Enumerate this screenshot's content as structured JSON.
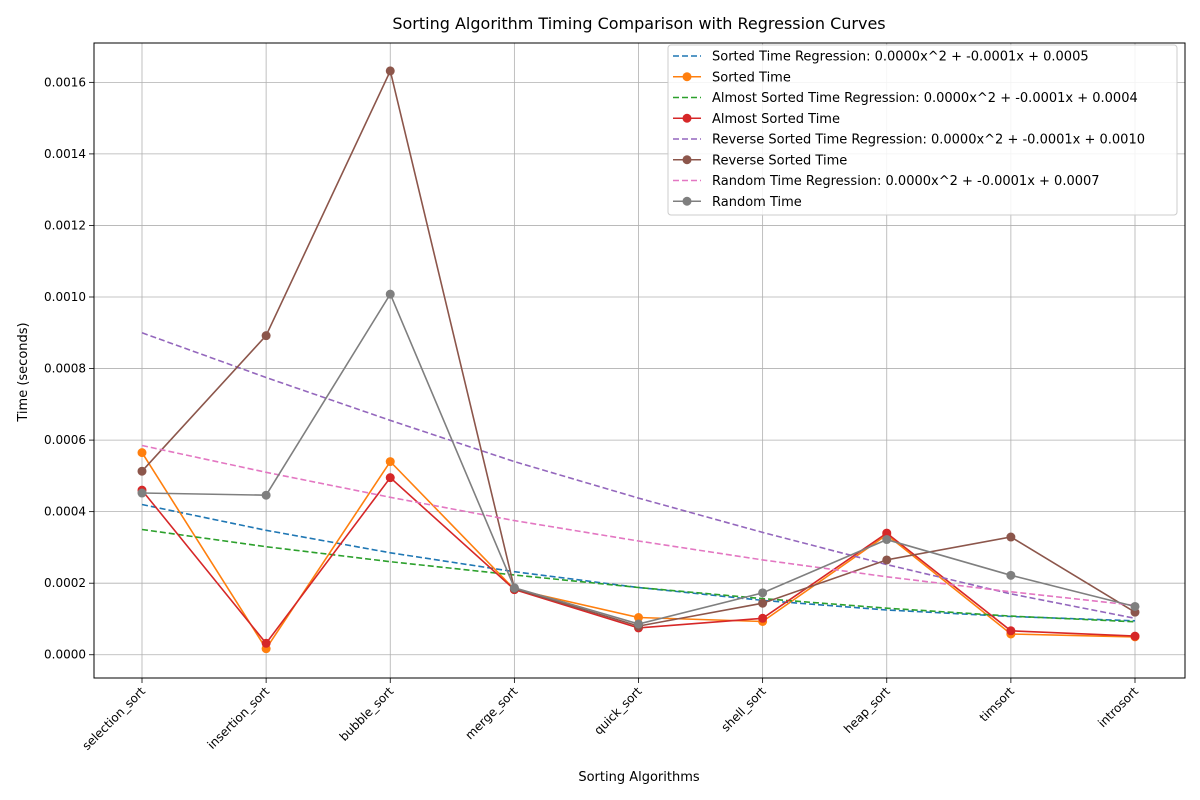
{
  "chart_data": {
    "type": "line",
    "title": "Sorting Algorithm Timing Comparison with Regression Curves",
    "xlabel": "Sorting Algorithms",
    "ylabel": "Time (seconds)",
    "categories": [
      "selection_sort",
      "insertion_sort",
      "bubble_sort",
      "merge_sort",
      "quick_sort",
      "shell_sort",
      "heap_sort",
      "timsort",
      "introsort"
    ],
    "ylim": [
      -6.5e-05,
      0.00171
    ],
    "yticks": [
      "0.0000",
      "0.0002",
      "0.0004",
      "0.0006",
      "0.0008",
      "0.0010",
      "0.0012",
      "0.0014",
      "0.0016"
    ],
    "ytick_values": [
      0,
      0.0002,
      0.0004,
      0.0006,
      0.0008,
      0.001,
      0.0012,
      0.0014,
      0.0016
    ],
    "grid": true,
    "legend_position": "top-right",
    "series": [
      {
        "name": "Sorted Time Regression: 0.0000x^2 + -0.0001x + 0.0005",
        "kind": "regression",
        "color": "#1f77b4",
        "values": [
          0.00042,
          0.000348,
          0.000285,
          0.000232,
          0.000188,
          0.000152,
          0.000125,
          0.000107,
          9.5e-05
        ]
      },
      {
        "name": "Sorted Time",
        "kind": "data",
        "color": "#ff7f0e",
        "values": [
          0.000565,
          1.7e-05,
          0.00054,
          0.000183,
          0.000104,
          9.3e-05,
          0.000335,
          5.8e-05,
          5e-05
        ]
      },
      {
        "name": "Almost Sorted Time Regression: 0.0000x^2 + -0.0001x + 0.0004",
        "kind": "regression",
        "color": "#2ca02c",
        "values": [
          0.00035,
          0.000302,
          0.00026,
          0.000223,
          0.000188,
          0.000157,
          0.00013,
          0.000108,
          9.2e-05
        ]
      },
      {
        "name": "Almost Sorted Time",
        "kind": "data",
        "color": "#d62728",
        "values": [
          0.00046,
          3.2e-05,
          0.000495,
          0.000182,
          7.5e-05,
          0.000102,
          0.00034,
          6.7e-05,
          5.2e-05
        ]
      },
      {
        "name": "Reverse Sorted Time Regression: 0.0000x^2 + -0.0001x + 0.0010",
        "kind": "regression",
        "color": "#9467bd",
        "values": [
          0.0009,
          0.000775,
          0.000655,
          0.00054,
          0.000438,
          0.000342,
          0.000252,
          0.00017,
          0.000102
        ]
      },
      {
        "name": "Reverse Sorted Time",
        "kind": "data",
        "color": "#8c564b",
        "values": [
          0.000513,
          0.000892,
          0.001632,
          0.000185,
          8e-05,
          0.000144,
          0.000265,
          0.000329,
          0.000119
        ]
      },
      {
        "name": "Random Time Regression: 0.0000x^2 + -0.0001x + 0.0007",
        "kind": "regression",
        "color": "#e377c2",
        "values": [
          0.000585,
          0.00051,
          0.00044,
          0.000375,
          0.000318,
          0.000265,
          0.000218,
          0.000176,
          0.000138
        ]
      },
      {
        "name": "Random Time",
        "kind": "data",
        "color": "#7f7f7f",
        "values": [
          0.000452,
          0.000446,
          0.001008,
          0.000187,
          8.6e-05,
          0.000173,
          0.000322,
          0.000222,
          0.000135
        ]
      }
    ]
  }
}
